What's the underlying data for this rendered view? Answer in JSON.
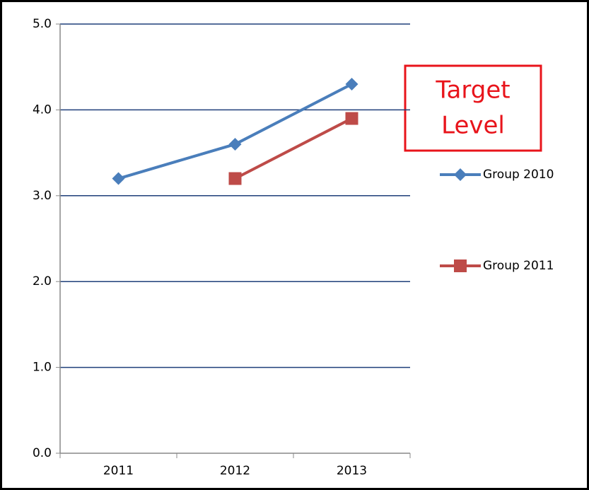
{
  "chart_data": {
    "type": "line",
    "categories": [
      "2011",
      "2012",
      "2013"
    ],
    "series": [
      {
        "name": "Group 2010",
        "color": "#4a7ebb",
        "marker": "diamond",
        "values": [
          3.2,
          3.6,
          4.3
        ]
      },
      {
        "name": "Group 2011",
        "color": "#be4b48",
        "marker": "square",
        "values": [
          null,
          3.2,
          3.9
        ]
      }
    ],
    "ylim": [
      0,
      5
    ],
    "yticks": [
      {
        "value": 0,
        "label": "0.0"
      },
      {
        "value": 1,
        "label": "1.0"
      },
      {
        "value": 2,
        "label": "2.0"
      },
      {
        "value": 3,
        "label": "3.0"
      },
      {
        "value": 4,
        "label": "4.0"
      },
      {
        "value": 5,
        "label": "5.0"
      }
    ],
    "grid": true,
    "grid_color": "#1f3f7a",
    "legend": "right",
    "annotation": [
      "Target",
      "Level"
    ],
    "annotation_color": "#e8141b"
  }
}
